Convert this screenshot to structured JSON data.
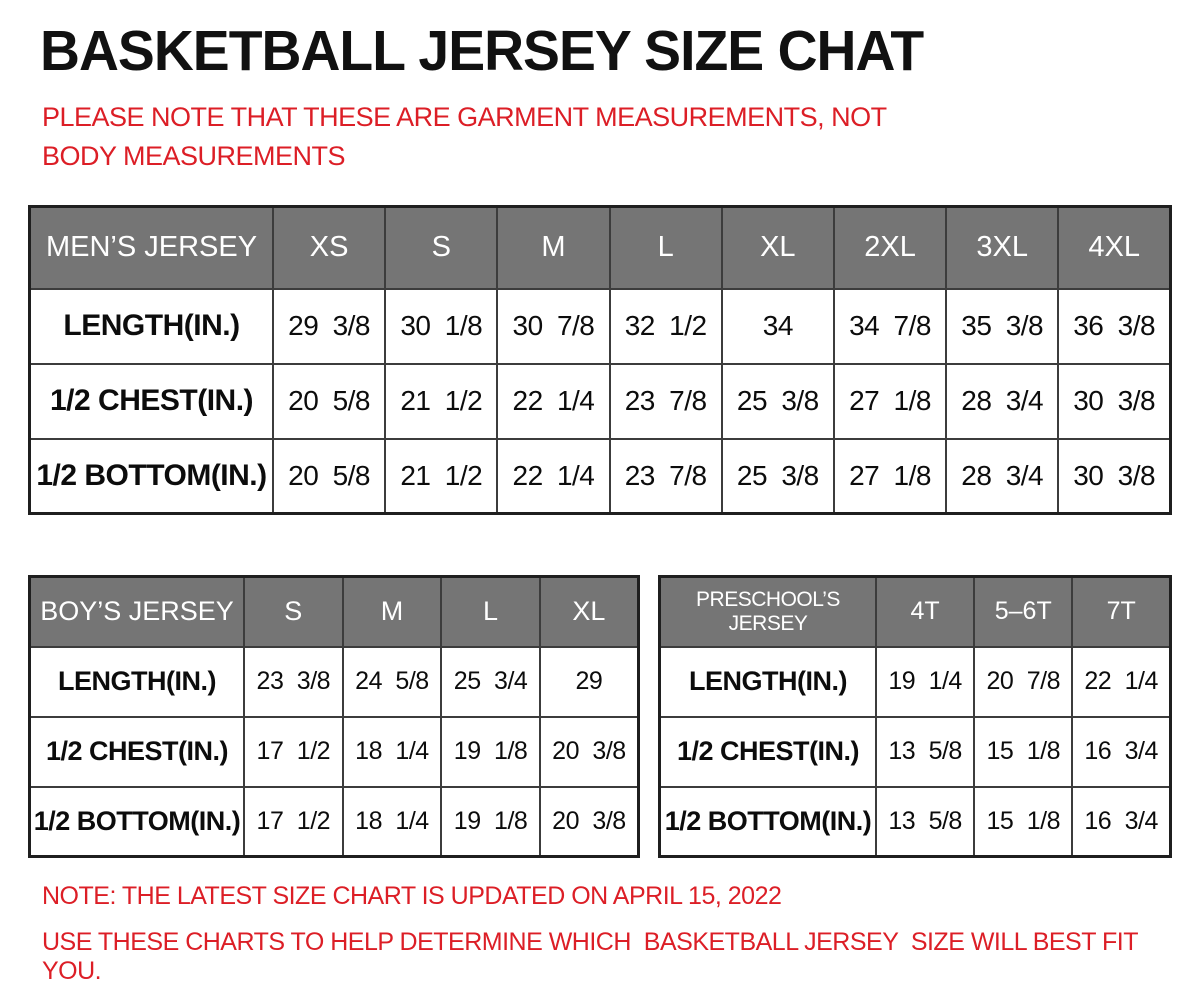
{
  "page": {
    "title": "BASKETBALL JERSEY SIZE CHAT",
    "top_note": "PLEASE NOTE THAT THESE ARE GARMENT MEASUREMENTS, NOT BODY MEASUREMENTS",
    "bottom_note1": "NOTE: THE LATEST SIZE CHART IS UPDATED ON APRIL 15, 2022",
    "bottom_note2": "USE THESE CHARTS TO HELP DETERMINE WHICH  BASKETBALL JERSEY  SIZE WILL BEST FIT YOU.",
    "accent_red": "#dc1e26",
    "header_gray": "#757575"
  },
  "tables": {
    "mens": {
      "header": [
        "MEN’S JERSEY",
        "XS",
        "S",
        "M",
        "L",
        "XL",
        "2XL",
        "3XL",
        "4XL"
      ],
      "rows": [
        {
          "label": "LENGTH(IN.)",
          "values": [
            "29 3/8",
            "30 1/8",
            "30 7/8",
            "32 1/2",
            "34",
            "34 7/8",
            "35 3/8",
            "36 3/8"
          ]
        },
        {
          "label": "1/2 CHEST(IN.)",
          "values": [
            "20 5/8",
            "21 1/2",
            "22 1/4",
            "23 7/8",
            "25 3/8",
            "27 1/8",
            "28 3/4",
            "30 3/8"
          ]
        },
        {
          "label": "1/2 BOTTOM(IN.)",
          "values": [
            "20 5/8",
            "21 1/2",
            "22 1/4",
            "23 7/8",
            "25 3/8",
            "27 1/8",
            "28 3/4",
            "30 3/8"
          ]
        }
      ]
    },
    "boys": {
      "header": [
        "BOY’S JERSEY",
        "S",
        "M",
        "L",
        "XL"
      ],
      "rows": [
        {
          "label": "LENGTH(IN.)",
          "values": [
            "23 3/8",
            "24 5/8",
            "25 3/4",
            "29"
          ]
        },
        {
          "label": "1/2 CHEST(IN.)",
          "values": [
            "17 1/2",
            "18 1/4",
            "19 1/8",
            "20 3/8"
          ]
        },
        {
          "label": "1/2 BOTTOM(IN.)",
          "values": [
            "17 1/2",
            "18 1/4",
            "19 1/8",
            "20 3/8"
          ]
        }
      ]
    },
    "preschools": {
      "header": [
        "PRESCHOOL’S JERSEY",
        "4T",
        "5–6T",
        "7T"
      ],
      "rows": [
        {
          "label": "LENGTH(IN.)",
          "values": [
            "19 1/4",
            "20 7/8",
            "22 1/4"
          ]
        },
        {
          "label": "1/2 CHEST(IN.)",
          "values": [
            "13 5/8",
            "15 1/8",
            "16 3/4"
          ]
        },
        {
          "label": "1/2 BOTTOM(IN.)",
          "values": [
            "13 5/8",
            "15 1/8",
            "16 3/4"
          ]
        }
      ]
    }
  },
  "chart_data": [
    {
      "type": "table",
      "title": "MEN’S JERSEY",
      "categories": [
        "XS",
        "S",
        "M",
        "L",
        "XL",
        "2XL",
        "3XL",
        "4XL"
      ],
      "series": [
        {
          "name": "LENGTH(IN.)",
          "values": [
            29.375,
            30.125,
            30.875,
            32.5,
            34,
            34.875,
            35.375,
            36.375
          ]
        },
        {
          "name": "1/2 CHEST(IN.)",
          "values": [
            20.625,
            21.5,
            22.25,
            23.875,
            25.375,
            27.125,
            28.75,
            30.375
          ]
        },
        {
          "name": "1/2 BOTTOM(IN.)",
          "values": [
            20.625,
            21.5,
            22.25,
            23.875,
            25.375,
            27.125,
            28.75,
            30.375
          ]
        }
      ]
    },
    {
      "type": "table",
      "title": "BOY’S JERSEY",
      "categories": [
        "S",
        "M",
        "L",
        "XL"
      ],
      "series": [
        {
          "name": "LENGTH(IN.)",
          "values": [
            23.375,
            24.625,
            25.75,
            29
          ]
        },
        {
          "name": "1/2 CHEST(IN.)",
          "values": [
            17.5,
            18.25,
            19.125,
            20.375
          ]
        },
        {
          "name": "1/2 BOTTOM(IN.)",
          "values": [
            17.5,
            18.25,
            19.125,
            20.375
          ]
        }
      ]
    },
    {
      "type": "table",
      "title": "PRESCHOOL’S JERSEY",
      "categories": [
        "4T",
        "5–6T",
        "7T"
      ],
      "series": [
        {
          "name": "LENGTH(IN.)",
          "values": [
            19.25,
            20.875,
            22.25
          ]
        },
        {
          "name": "1/2 CHEST(IN.)",
          "values": [
            13.625,
            15.125,
            16.75
          ]
        },
        {
          "name": "1/2 BOTTOM(IN.)",
          "values": [
            13.625,
            15.125,
            16.75
          ]
        }
      ]
    }
  ]
}
